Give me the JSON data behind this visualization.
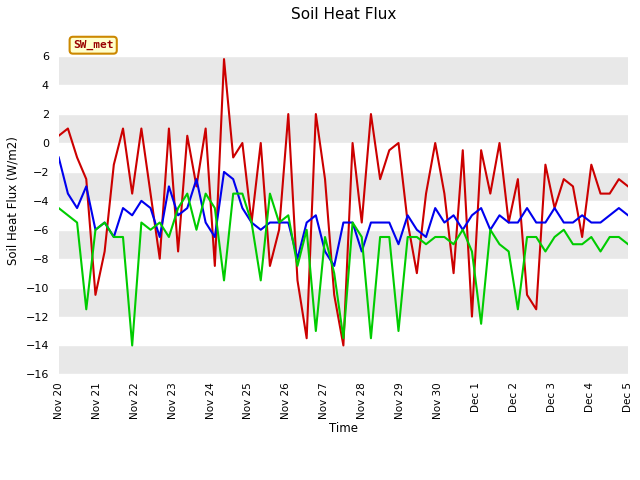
{
  "title": "Soil Heat Flux",
  "ylabel": "Soil Heat Flux (W/m2)",
  "xlabel": "Time",
  "ylim": [
    -16,
    8
  ],
  "yticks": [
    -16,
    -14,
    -12,
    -10,
    -8,
    -6,
    -4,
    -2,
    0,
    2,
    4,
    6
  ],
  "fig_bg_color": "#ffffff",
  "plot_bg_color": "#ffffff",
  "band_colors": [
    "#e8e8e8",
    "#ffffff"
  ],
  "line_colors": {
    "SHF1": "#cc0000",
    "SHF2": "#0000ee",
    "SHF3": "#00cc00"
  },
  "line_width": 1.5,
  "annotation_text": "SW_met",
  "annotation_color": "#990000",
  "annotation_bg": "#ffffcc",
  "annotation_border": "#cc8800",
  "x_tick_labels": [
    "Nov 20",
    "Nov 21",
    "Nov 22",
    "Nov 23",
    "Nov 24",
    "Nov 25",
    "Nov 26",
    "Nov 27",
    "Nov 28",
    "Nov 29",
    "Nov 30",
    "Dec 1",
    "Dec 2",
    "Dec 3",
    "Dec 4",
    "Dec 5"
  ],
  "shf1": [
    0.5,
    1.0,
    -1.0,
    -2.5,
    -10.5,
    -7.5,
    -1.5,
    1.0,
    -3.5,
    1.0,
    -3.5,
    -8.0,
    1.0,
    -7.5,
    0.5,
    -3.0,
    1.0,
    -8.5,
    5.8,
    -1.0,
    0.0,
    -5.5,
    0.0,
    -8.5,
    -6.0,
    2.0,
    -9.5,
    -13.5,
    2.0,
    -2.5,
    -10.5,
    -14.0,
    0.0,
    -5.5,
    2.0,
    -2.5,
    -0.5,
    0.0,
    -5.5,
    -9.0,
    -3.5,
    0.0,
    -3.5,
    -9.0,
    -0.5,
    -12.0,
    -0.5,
    -3.5,
    0.0,
    -5.5,
    -2.5,
    -10.5,
    -11.5,
    -1.5,
    -4.5,
    -2.5,
    -3.0,
    -6.5,
    -1.5,
    -3.5,
    -3.5,
    -2.5,
    -3.0
  ],
  "shf2": [
    -1.0,
    -3.5,
    -4.5,
    -3.0,
    -6.0,
    -5.5,
    -6.5,
    -4.5,
    -5.0,
    -4.0,
    -4.5,
    -6.5,
    -3.0,
    -5.0,
    -4.5,
    -2.5,
    -5.5,
    -6.5,
    -2.0,
    -2.5,
    -4.5,
    -5.5,
    -6.0,
    -5.5,
    -5.5,
    -5.5,
    -8.0,
    -5.5,
    -5.0,
    -7.5,
    -8.5,
    -5.5,
    -5.5,
    -7.5,
    -5.5,
    -5.5,
    -5.5,
    -7.0,
    -5.0,
    -6.0,
    -6.5,
    -4.5,
    -5.5,
    -5.0,
    -6.0,
    -5.0,
    -4.5,
    -6.0,
    -5.0,
    -5.5,
    -5.5,
    -4.5,
    -5.5,
    -5.5,
    -4.5,
    -5.5,
    -5.5,
    -5.0,
    -5.5,
    -5.5,
    -5.0,
    -4.5,
    -5.0
  ],
  "shf3": [
    -4.5,
    -5.0,
    -5.5,
    -11.5,
    -6.0,
    -5.5,
    -6.5,
    -6.5,
    -14.0,
    -5.5,
    -6.0,
    -5.5,
    -6.5,
    -4.5,
    -3.5,
    -6.0,
    -3.5,
    -4.5,
    -9.5,
    -3.5,
    -3.5,
    -5.5,
    -9.5,
    -3.5,
    -5.5,
    -5.0,
    -8.5,
    -6.0,
    -13.0,
    -6.5,
    -9.0,
    -13.5,
    -5.5,
    -6.5,
    -13.5,
    -6.5,
    -6.5,
    -13.0,
    -6.5,
    -6.5,
    -7.0,
    -6.5,
    -6.5,
    -7.0,
    -6.0,
    -7.5,
    -12.5,
    -6.0,
    -7.0,
    -7.5,
    -11.5,
    -6.5,
    -6.5,
    -7.5,
    -6.5,
    -6.0,
    -7.0,
    -7.0,
    -6.5,
    -7.5,
    -6.5,
    -6.5,
    -7.0
  ]
}
